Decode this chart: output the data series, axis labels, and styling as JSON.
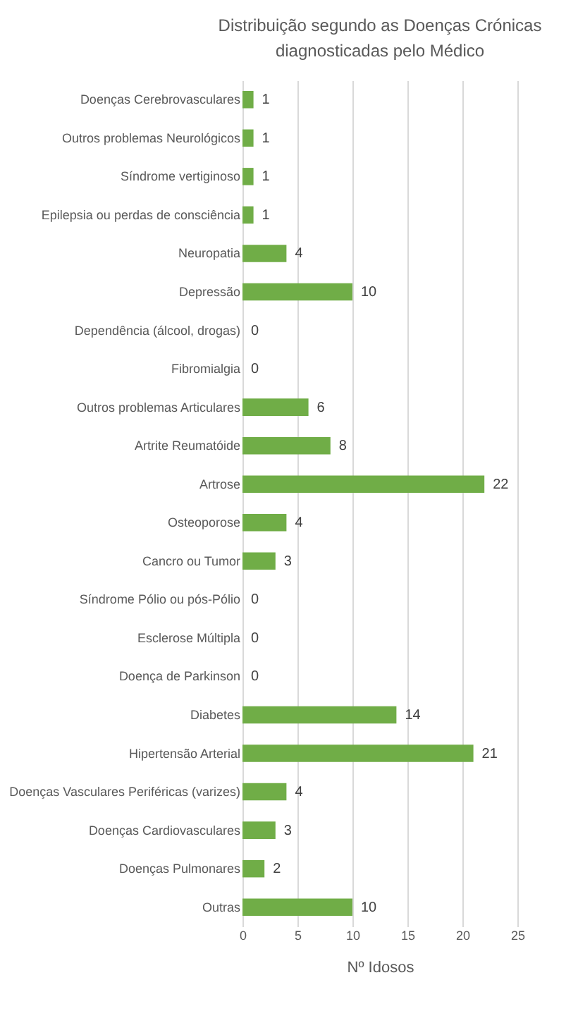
{
  "chart_data": {
    "type": "bar",
    "orientation": "horizontal",
    "title": "Distribuição segundo as Doenças Crónicas diagnosticadas pelo Médico",
    "xlabel": "Nº Idosos",
    "categories": [
      "Doenças Cerebrovasculares",
      "Outros problemas Neurológicos",
      "Síndrome vertiginoso",
      "Epilepsia ou perdas de consciência",
      "Neuropatia",
      "Depressão",
      "Dependência (álcool, drogas)",
      "Fibromialgia",
      "Outros problemas Articulares",
      "Artrite Reumatóide",
      "Artrose",
      "Osteoporose",
      "Cancro ou Tumor",
      "Síndrome Pólio ou pós-Pólio",
      "Esclerose Múltipla",
      "Doença de Parkinson",
      "Diabetes",
      "Hipertensão Arterial",
      "Doenças Vasculares Periféricas (varizes)",
      "Doenças Cardiovasculares",
      "Doenças Pulmonares",
      "Outras"
    ],
    "values": [
      1,
      1,
      1,
      1,
      4,
      10,
      0,
      0,
      6,
      8,
      22,
      4,
      3,
      0,
      0,
      0,
      14,
      21,
      4,
      3,
      2,
      10
    ],
    "color": "#70ad47",
    "xlim": [
      0,
      25
    ],
    "xticks": [
      0,
      5,
      10,
      15,
      20,
      25
    ],
    "grid": "x",
    "data_labels": true
  }
}
